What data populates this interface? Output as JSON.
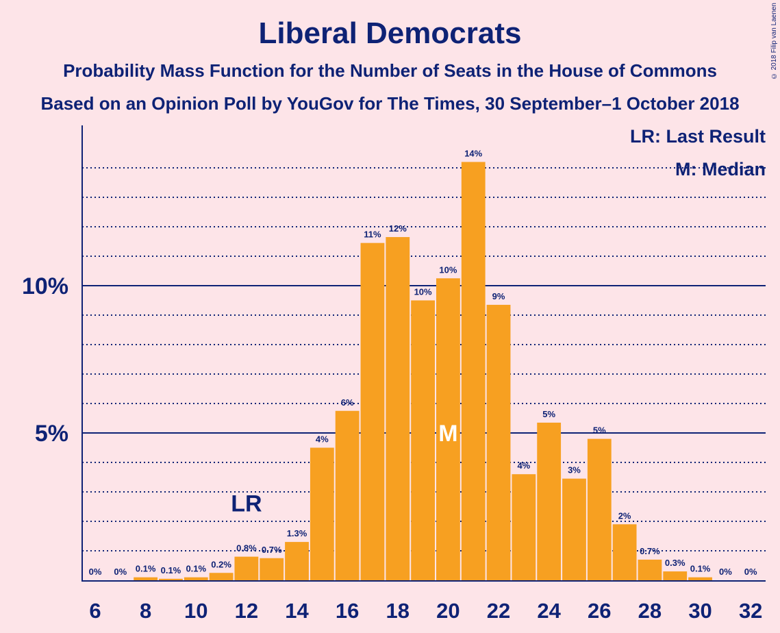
{
  "title": "Liberal Democrats",
  "subtitle1": "Probability Mass Function for the Number of Seats in the House of Commons",
  "subtitle2": "Based on an Opinion Poll by YouGov for The Times, 30 September–1 October 2018",
  "copyright": "© 2018 Filip van Laenen",
  "legend": {
    "last_result": "LR: Last Result",
    "median": "M: Median"
  },
  "colors": {
    "bar": "#f7a021",
    "text": "#0e2275",
    "background": "#fde4e8"
  },
  "chart_data": {
    "type": "bar",
    "categories": [
      6,
      7,
      8,
      9,
      10,
      11,
      12,
      13,
      14,
      15,
      16,
      17,
      18,
      19,
      20,
      21,
      22,
      23,
      24,
      25,
      26,
      27,
      28,
      29,
      30,
      31,
      32
    ],
    "values": [
      0,
      0,
      0.1,
      0.05,
      0.1,
      0.25,
      0.8,
      0.75,
      1.3,
      4.5,
      5.75,
      11.45,
      11.65,
      9.5,
      10.25,
      14.2,
      9.35,
      3.6,
      5.35,
      3.45,
      4.8,
      1.9,
      0.7,
      0.3,
      0.1,
      0,
      0
    ],
    "data_labels": [
      "0%",
      "0%",
      "0.1%",
      "0.1%",
      "0.1%",
      "0.2%",
      "0.8%",
      "0.7%",
      "1.3%",
      "4%",
      "6%",
      "11%",
      "12%",
      "10%",
      "10%",
      "14%",
      "9%",
      "4%",
      "5%",
      "3%",
      "5%",
      "2%",
      "0.7%",
      "0.3%",
      "0.1%",
      "0%",
      "0%"
    ],
    "x_tick_labels": [
      "6",
      "8",
      "10",
      "12",
      "14",
      "16",
      "18",
      "20",
      "22",
      "24",
      "26",
      "28",
      "30",
      "32"
    ],
    "y_tick_labels": [
      {
        "value": 5,
        "label": "5%"
      },
      {
        "value": 10,
        "label": "10%"
      }
    ],
    "ylim": [
      0,
      15
    ],
    "minor_grid_step": 1,
    "last_result": {
      "seat": 12,
      "label": "LR"
    },
    "median": {
      "seat": 20,
      "label": "M"
    },
    "grid": true,
    "legend_position": "top-right"
  }
}
